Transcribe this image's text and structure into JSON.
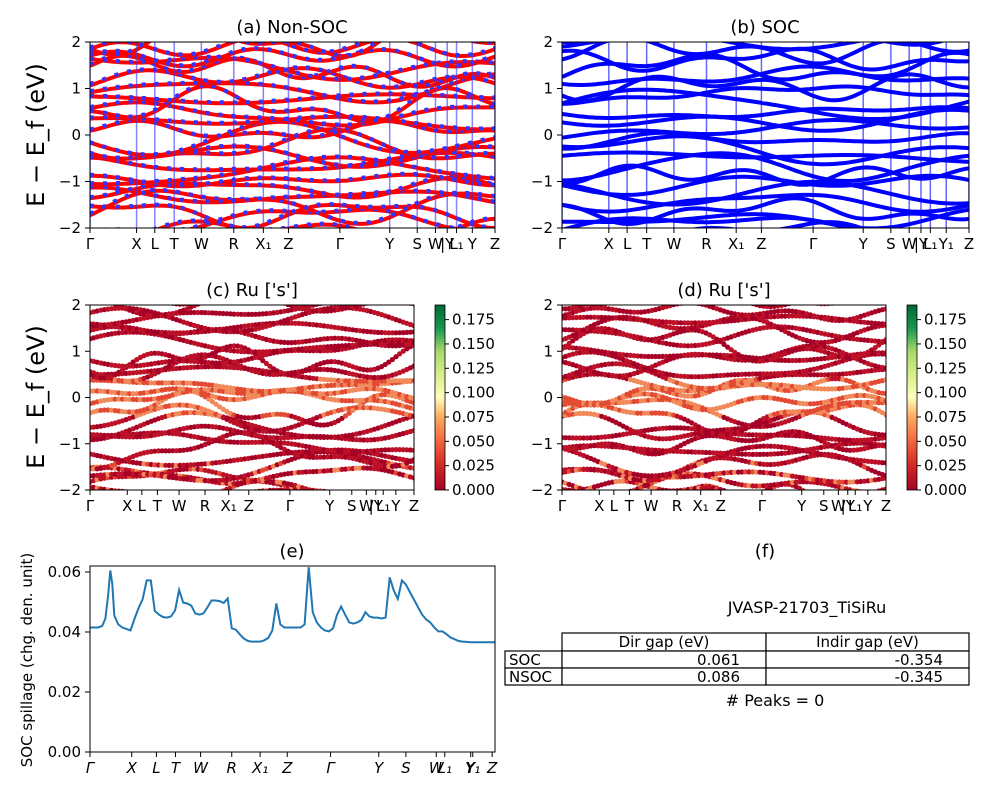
{
  "chart_data": [
    {
      "id": "a",
      "type": "line",
      "title": "(a) Non-SOC",
      "ylabel": "E − E_f (eV)",
      "ylim": [
        -2,
        2
      ],
      "yticks": [
        "−2",
        "−1",
        "0",
        "1",
        "2"
      ],
      "kpath": [
        "Γ",
        "X",
        "L",
        "T",
        "W",
        "R",
        "X₁",
        "Z",
        "Γ",
        "Y",
        "S",
        "W",
        "|Y",
        "L₁",
        "Y",
        "Z"
      ],
      "series_colors": [
        "#ff0000",
        "#3333ff"
      ],
      "note": "band structure, spin-up red and spin-down blue"
    },
    {
      "id": "b",
      "type": "line",
      "title": "(b) SOC",
      "ylim": [
        -2,
        2
      ],
      "yticks": [
        "−2",
        "−1",
        "0",
        "1",
        "2"
      ],
      "kpath": [
        "Γ",
        "X",
        "L",
        "T",
        "W",
        "R",
        "X₁",
        "Z",
        "Γ",
        "Y",
        "S",
        "W",
        "|Y",
        "L₁",
        "Y₁",
        "Z"
      ],
      "series_colors": [
        "#0000ff"
      ]
    },
    {
      "id": "c",
      "type": "scatter",
      "title": "(c)  Ru ['s']",
      "ylabel": "E − E_f (eV)",
      "ylim": [
        -2,
        2
      ],
      "yticks": [
        "−2",
        "−1",
        "0",
        "1",
        "2"
      ],
      "kpath": [
        "Γ",
        "X",
        "L",
        "T",
        "W",
        "R",
        "X₁",
        "Z",
        "Γ",
        "Y",
        "S",
        "W",
        "|Y",
        "L₁",
        "Y",
        "Z"
      ],
      "colorbar": {
        "min": 0.0,
        "max": 0.19,
        "ticks": [
          "0.000",
          "0.025",
          "0.050",
          "0.075",
          "0.100",
          "0.125",
          "0.150",
          "0.175"
        ],
        "colormap": "RdYlGn"
      }
    },
    {
      "id": "d",
      "type": "scatter",
      "title": "(d) Ru ['s']",
      "ylim": [
        -2,
        2
      ],
      "yticks": [
        "−2",
        "−1",
        "0",
        "1",
        "2"
      ],
      "kpath": [
        "Γ",
        "X",
        "L",
        "T",
        "W",
        "R",
        "X₁",
        "Z",
        "Γ",
        "Y",
        "S",
        "W",
        "|Y",
        "L₁",
        "Y",
        "Z"
      ],
      "colorbar": {
        "min": 0.0,
        "max": 0.19,
        "ticks": [
          "0.000",
          "0.025",
          "0.050",
          "0.075",
          "0.100",
          "0.125",
          "0.150",
          "0.175"
        ],
        "colormap": "RdYlGn"
      }
    },
    {
      "id": "e",
      "type": "line",
      "title": "(e)",
      "ylabel": "SOC spillage (chg. den. unit)",
      "ylim": [
        0,
        0.062
      ],
      "yticks": [
        "0.00",
        "0.02",
        "0.04",
        "0.06"
      ],
      "xticks": [
        "Γ",
        "X",
        "L",
        "T",
        "W",
        "R",
        "X₁",
        "Z",
        "Γ",
        "Y",
        "S",
        "W",
        "L₁",
        "Y",
        "Y₁",
        "Z"
      ],
      "xlim": [
        0,
        100
      ],
      "x": [
        0,
        2,
        3,
        3.8,
        4.5,
        5,
        5.5,
        6,
        7,
        8,
        9,
        10,
        11,
        12,
        13,
        14,
        15,
        16,
        17,
        18,
        19,
        20,
        21,
        22,
        23,
        24,
        25,
        26,
        27,
        28,
        29,
        30,
        31,
        32,
        33,
        34,
        35,
        36,
        37,
        38,
        39,
        40,
        41,
        42,
        43,
        44,
        45,
        46,
        47,
        48,
        49,
        50,
        51,
        52,
        53,
        54,
        55,
        56,
        57,
        58,
        59,
        60,
        61,
        62,
        63,
        64,
        65,
        66,
        67,
        68,
        69,
        70,
        71,
        72,
        73,
        74,
        75,
        76,
        77,
        78,
        79,
        80,
        81,
        82,
        83,
        84,
        85,
        86,
        87,
        88,
        89,
        90,
        91,
        92,
        93,
        94,
        95,
        96,
        97,
        98,
        99,
        100
      ],
      "y": [
        0.0415,
        0.0415,
        0.042,
        0.0445,
        0.0525,
        0.0605,
        0.056,
        0.0455,
        0.0425,
        0.0415,
        0.041,
        0.0405,
        0.0445,
        0.048,
        0.051,
        0.0572,
        0.0572,
        0.047,
        0.0458,
        0.045,
        0.0448,
        0.0452,
        0.0472,
        0.054,
        0.0498,
        0.0495,
        0.0488,
        0.0462,
        0.0458,
        0.0462,
        0.0482,
        0.0505,
        0.0505,
        0.0503,
        0.0497,
        0.0512,
        0.0412,
        0.0408,
        0.0392,
        0.0378,
        0.037,
        0.0368,
        0.0368,
        0.0368,
        0.0372,
        0.038,
        0.0405,
        0.0495,
        0.0425,
        0.0415,
        0.0415,
        0.0415,
        0.0415,
        0.0415,
        0.0425,
        0.0616,
        0.0465,
        0.0432,
        0.0415,
        0.0405,
        0.0402,
        0.0412,
        0.0457,
        0.0485,
        0.0458,
        0.0432,
        0.0428,
        0.0432,
        0.044,
        0.0466,
        0.0452,
        0.0448,
        0.0448,
        0.0445,
        0.0448,
        0.0582,
        0.0538,
        0.051,
        0.0572,
        0.0558,
        0.0533,
        0.0508,
        0.0482,
        0.0458,
        0.0442,
        0.0432,
        0.0415,
        0.0402,
        0.0402,
        0.0393,
        0.0382,
        0.0376,
        0.037,
        0.0368,
        0.0367,
        0.0366,
        0.0366,
        0.0366,
        0.0366,
        0.0366,
        0.0366,
        0.0366
      ],
      "line_color": "#1f77b4"
    },
    {
      "id": "f",
      "type": "table",
      "title": "(f)",
      "caption": "JVASP-21703_TiSiRu",
      "columns": [
        "",
        "Dir gap (eV)",
        "Indir gap (eV)"
      ],
      "rows": [
        [
          "SOC",
          "0.061",
          "-0.354"
        ],
        [
          "NSOC",
          "0.086",
          "-0.345"
        ]
      ],
      "footer": "# Peaks = 0"
    }
  ]
}
